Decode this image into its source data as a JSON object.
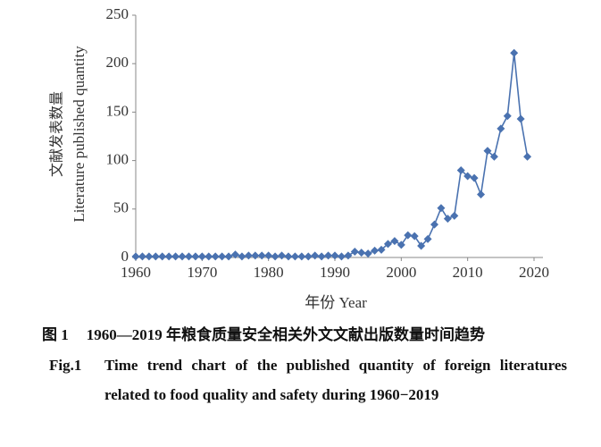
{
  "chart_data": {
    "type": "line",
    "y_label_cn": "文献发表数量",
    "y_label": "Literature published quantity",
    "x_label": "年份 Year",
    "x": [
      1960,
      1961,
      1962,
      1963,
      1964,
      1965,
      1966,
      1967,
      1968,
      1969,
      1970,
      1971,
      1972,
      1973,
      1974,
      1975,
      1976,
      1977,
      1978,
      1979,
      1980,
      1981,
      1982,
      1983,
      1984,
      1985,
      1986,
      1987,
      1988,
      1989,
      1990,
      1991,
      1992,
      1993,
      1994,
      1995,
      1996,
      1997,
      1998,
      1999,
      2000,
      2001,
      2002,
      2003,
      2004,
      2005,
      2006,
      2007,
      2008,
      2009,
      2010,
      2011,
      2012,
      2013,
      2014,
      2015,
      2016,
      2017,
      2018,
      2019
    ],
    "series": [
      {
        "color": "#4a72b0",
        "values": [
          1,
          1,
          1,
          1,
          1,
          1,
          1,
          1,
          1,
          1,
          1,
          1,
          1,
          1,
          1,
          3,
          1,
          2,
          2,
          2,
          2,
          1,
          2,
          1,
          1,
          1,
          1,
          2,
          1,
          2,
          2,
          1,
          2,
          6,
          5,
          4,
          7,
          8,
          14,
          17,
          13,
          23,
          22,
          12,
          19,
          34,
          51,
          40,
          43,
          90,
          84,
          82,
          65,
          110,
          104,
          133,
          146,
          211,
          143,
          104
        ]
      }
    ],
    "xlim": [
      1960,
      2020
    ],
    "xticks": [
      1960,
      1970,
      1980,
      1990,
      2000,
      2010,
      2020
    ],
    "ylim": [
      0,
      250
    ],
    "yticks": [
      0,
      50,
      100,
      150,
      200,
      250
    ],
    "grid": false,
    "caption_cn": {
      "label": "图 1",
      "text": "1960—2019 年粮食质量安全相关外文文献出版数量时间趋势"
    },
    "caption_en": {
      "label": "Fig.1",
      "text": "Time trend chart of the published quantity of foreign literatures related to food quality and safety during 1960−2019"
    }
  }
}
